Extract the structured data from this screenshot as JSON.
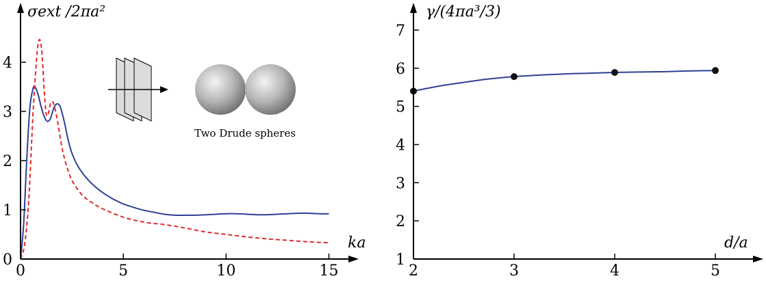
{
  "chart_data": [
    {
      "type": "line",
      "ylabel": "σext /2πa²",
      "xlabel": "ka",
      "xlim": [
        0,
        15
      ],
      "ylim": [
        0,
        4.5
      ],
      "x_ticks": [
        "0",
        "5",
        "10",
        "15"
      ],
      "y_ticks": [
        "0",
        "1",
        "2",
        "3",
        "4"
      ],
      "grid": false,
      "inset_text": "Two Drude spheres",
      "series": [
        {
          "color": "#2e3f93",
          "style": "solid",
          "x": [
            0,
            0.15,
            0.3,
            0.45,
            0.6,
            0.7,
            0.85,
            1.0,
            1.15,
            1.3,
            1.45,
            1.6,
            1.75,
            1.9,
            2.0,
            2.15,
            2.3,
            2.5,
            2.8,
            3.2,
            3.6,
            4.0,
            4.5,
            5.0,
            5.5,
            6.0,
            6.5,
            7.0,
            7.5,
            8.0,
            8.5,
            9.0,
            9.5,
            10.0,
            10.5,
            11.0,
            11.5,
            12.0,
            12.5,
            13.0,
            13.5,
            14.0,
            14.5,
            15.0
          ],
          "y": [
            0,
            0.7,
            2.0,
            3.05,
            3.45,
            3.5,
            3.35,
            3.1,
            2.9,
            2.8,
            2.85,
            3.05,
            3.15,
            3.12,
            3.0,
            2.75,
            2.45,
            2.15,
            1.88,
            1.65,
            1.48,
            1.35,
            1.22,
            1.12,
            1.05,
            0.99,
            0.95,
            0.91,
            0.89,
            0.89,
            0.89,
            0.9,
            0.91,
            0.92,
            0.92,
            0.91,
            0.9,
            0.9,
            0.91,
            0.92,
            0.93,
            0.93,
            0.92,
            0.92
          ]
        },
        {
          "color": "#e0282d",
          "style": "dashed",
          "x": [
            0,
            0.2,
            0.4,
            0.6,
            0.75,
            0.85,
            0.95,
            1.05,
            1.15,
            1.25,
            1.35,
            1.45,
            1.55,
            1.65,
            1.8,
            2.0,
            2.2,
            2.5,
            3.0,
            3.5,
            4.0,
            5.0,
            6.0,
            7.0,
            8.0,
            9.0,
            10.0,
            11.0,
            12.0,
            13.0,
            14.0,
            15.0
          ],
          "y": [
            0,
            0.3,
            1.2,
            2.9,
            3.9,
            4.35,
            4.45,
            4.15,
            3.45,
            2.95,
            2.95,
            3.15,
            3.2,
            3.1,
            2.8,
            2.3,
            1.95,
            1.6,
            1.3,
            1.14,
            1.02,
            0.85,
            0.75,
            0.7,
            0.63,
            0.55,
            0.5,
            0.45,
            0.41,
            0.38,
            0.35,
            0.33
          ]
        }
      ]
    },
    {
      "type": "line",
      "ylabel": "γ/(4πa³/3)",
      "xlabel": "d/a",
      "xlim": [
        2,
        5.25
      ],
      "ylim": [
        1,
        7.3
      ],
      "x_ticks": [
        "2",
        "3",
        "4",
        "5"
      ],
      "y_ticks": [
        "1",
        "2",
        "3",
        "4",
        "5",
        "6",
        "7"
      ],
      "grid": false,
      "series": [
        {
          "color": "#2e3f93",
          "style": "solid",
          "x": [
            2.0,
            2.25,
            2.5,
            2.75,
            3.0,
            3.25,
            3.5,
            3.75,
            4.0,
            4.25,
            4.5,
            4.75,
            5.0
          ],
          "y": [
            5.4,
            5.53,
            5.63,
            5.72,
            5.78,
            5.82,
            5.85,
            5.87,
            5.89,
            5.9,
            5.91,
            5.93,
            5.94
          ]
        }
      ],
      "points": {
        "x": [
          2,
          3,
          4,
          5
        ],
        "y": [
          5.4,
          5.78,
          5.89,
          5.94
        ]
      }
    }
  ]
}
